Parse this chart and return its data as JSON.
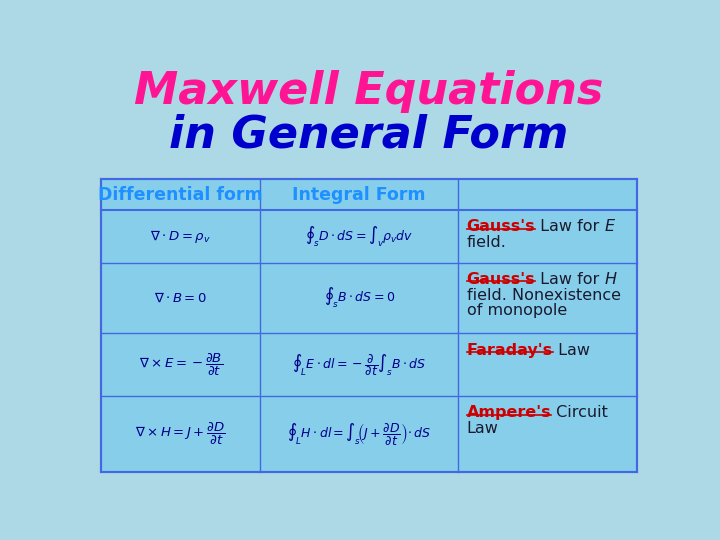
{
  "title_line1": "Maxwell Equations",
  "title_line2": "in General Form",
  "title_color1": "#FF1493",
  "title_color2": "#0000CD",
  "title_fontsize": 32,
  "bg_color": "#ADD8E6",
  "table_bg": "#87CEEB",
  "border_color": "#4169E1",
  "header1": "Differential form",
  "header2": "Integral Form",
  "header_color": "#1E90FF",
  "eq_color": "#00008B",
  "underline_color": "#CC0000",
  "normal_color": "#1a1a2e",
  "rows": [
    {
      "diff": "$\\nabla \\cdot D = \\rho_v$",
      "integral": "$\\oint_s D \\cdot dS = \\int_v \\rho_v dv$",
      "label_ul": "Gauss's",
      "label_after_ul": " Law for ",
      "label_italic": "E",
      "label_lines": [
        "field."
      ]
    },
    {
      "diff": "$\\nabla \\cdot B = 0$",
      "integral": "$\\oint_s B \\cdot dS = 0$",
      "label_ul": "Gauss's",
      "label_after_ul": " Law for ",
      "label_italic": "H",
      "label_lines": [
        "field. Nonexistence",
        "of monopole"
      ]
    },
    {
      "diff": "$\\nabla \\times E = -\\dfrac{\\partial B}{\\partial t}$",
      "integral": "$\\oint_L E \\cdot dl = -\\dfrac{\\partial}{\\partial t}\\int_s B \\cdot dS$",
      "label_ul": "Faraday's",
      "label_after_ul": " Law",
      "label_italic": "",
      "label_lines": []
    },
    {
      "diff": "$\\nabla \\times H = J + \\dfrac{\\partial D}{\\partial t}$",
      "integral": "$\\oint_L H \\cdot dl = \\int_s\\!\\left(J + \\dfrac{\\partial D}{\\partial t}\\right)\\!\\cdot dS$",
      "label_ul": "Ampere's",
      "label_after_ul": " Circuit",
      "label_italic": "",
      "label_lines": [
        "Law"
      ]
    }
  ]
}
